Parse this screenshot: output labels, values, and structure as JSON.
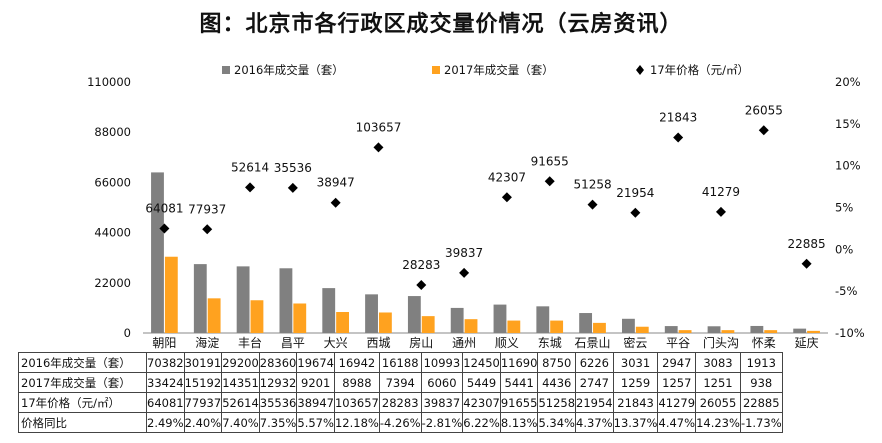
{
  "chart_data": {
    "type": "bar+scatter",
    "title": "图：北京市各行政区成交量价情况（云房资讯）",
    "categories": [
      "朝阳",
      "海淀",
      "丰台",
      "昌平",
      "大兴",
      "西城",
      "房山",
      "通州",
      "顺义",
      "东城",
      "石景山",
      "密云",
      "平谷",
      "门头沟",
      "怀柔",
      "延庆"
    ],
    "series": [
      {
        "name": "2016年成交量（套）",
        "kind": "bar",
        "color": "#808080",
        "values": [
          70382,
          30191,
          29200,
          28360,
          19674,
          16942,
          16188,
          10993,
          12450,
          11690,
          8750,
          6226,
          3031,
          2947,
          3083,
          1913
        ]
      },
      {
        "name": "2017年成交量（套）",
        "kind": "bar",
        "color": "#ffa21f",
        "values": [
          33424,
          15192,
          14351,
          12932,
          9201,
          8988,
          7394,
          6060,
          5449,
          5441,
          4436,
          2747,
          1259,
          1257,
          1251,
          938
        ]
      },
      {
        "name": "17年价格（元/㎡）",
        "kind": "scatter",
        "axis": "right",
        "color": "#000000",
        "values": [
          64081,
          77937,
          52614,
          35536,
          38947,
          103657,
          28283,
          39837,
          42307,
          91655,
          51258,
          21954,
          21843,
          41279,
          26055,
          22885
        ]
      }
    ],
    "price_yoy": [
      2.49,
      2.4,
      7.4,
      7.35,
      5.57,
      12.18,
      -4.26,
      -2.81,
      6.22,
      8.13,
      5.34,
      4.37,
      13.37,
      4.47,
      14.23,
      -1.73
    ],
    "left_axis": {
      "min": 0,
      "max": 110000,
      "ticks": [
        "0",
        "22000",
        "44000",
        "66000",
        "88000",
        "110000"
      ]
    },
    "right_axis": {
      "min": -10,
      "max": 20,
      "ticks": [
        "-10%",
        "-5%",
        "0%",
        "5%",
        "10%",
        "15%",
        "20%"
      ]
    },
    "table": {
      "row_labels": [
        "2016年成交量（套）",
        "2017年成交量（套）",
        "17年价格（元/㎡）",
        "价格同比"
      ],
      "rows": [
        [
          "70382",
          "30191",
          "29200",
          "28360",
          "19674",
          "16942",
          "16188",
          "10993",
          "12450",
          "11690",
          "8750",
          "6226",
          "3031",
          "2947",
          "3083",
          "1913"
        ],
        [
          "33424",
          "15192",
          "14351",
          "12932",
          "9201",
          "8988",
          "7394",
          "6060",
          "5449",
          "5441",
          "4436",
          "2747",
          "1259",
          "1257",
          "1251",
          "938"
        ],
        [
          "64081",
          "77937",
          "52614",
          "35536",
          "38947",
          "103657",
          "28283",
          "39837",
          "42307",
          "91655",
          "51258",
          "21954",
          "21843",
          "41279",
          "26055",
          "22885"
        ],
        [
          "2.49%",
          "2.40%",
          "7.40%",
          "7.35%",
          "5.57%",
          "12.18%",
          "-4.26%",
          "-2.81%",
          "6.22%",
          "8.13%",
          "5.34%",
          "4.37%",
          "13.37%",
          "4.47%",
          "14.23%",
          "-1.73%"
        ]
      ]
    }
  }
}
